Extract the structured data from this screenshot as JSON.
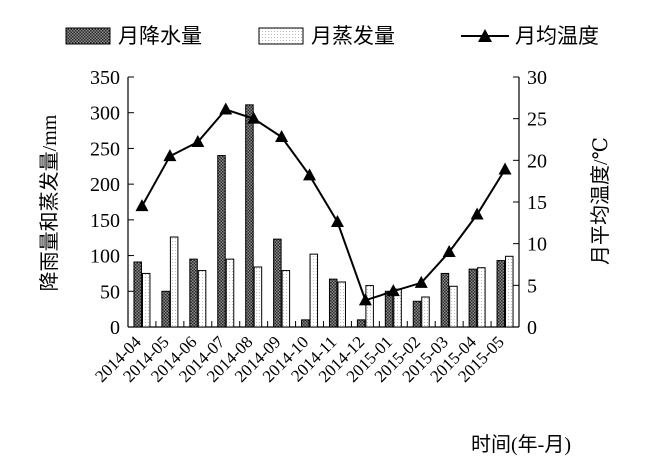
{
  "chart_data": {
    "type": "bar",
    "categories": [
      "2014-04",
      "2014-05",
      "2014-06",
      "2014-07",
      "2014-08",
      "2014-09",
      "2014-10",
      "2014-11",
      "2014-12",
      "2015-01",
      "2015-02",
      "2015-03",
      "2015-04",
      "2015-05"
    ],
    "series": [
      {
        "name": "月降水量",
        "type": "bar",
        "axis": "left",
        "pattern": "dark-hatch",
        "values": [
          91,
          50,
          95,
          240,
          311,
          123,
          10,
          67,
          10,
          50,
          36,
          75,
          81,
          93
        ]
      },
      {
        "name": "月蒸发量",
        "type": "bar",
        "axis": "left",
        "pattern": "light-dots",
        "values": [
          75,
          126,
          79,
          95,
          84,
          79,
          102,
          63,
          58,
          53,
          42,
          57,
          83,
          99
        ]
      },
      {
        "name": "月均温度",
        "type": "line",
        "axis": "right",
        "marker": "triangle",
        "values": [
          14.5,
          20.5,
          22.2,
          26.1,
          25.0,
          22.8,
          18.2,
          12.6,
          3.2,
          4.3,
          5.3,
          9.0,
          13.5,
          18.9
        ]
      }
    ],
    "ylabel": "降雨量和蒸发量/mm",
    "ylim": [
      0,
      350
    ],
    "yticks": [
      "0",
      "50",
      "100",
      "150",
      "200",
      "250",
      "300",
      "350"
    ],
    "y2label": "月平均温度/℃",
    "y2lim": [
      0,
      30
    ],
    "y2ticks": [
      "0",
      "5",
      "10",
      "15",
      "20",
      "25",
      "30"
    ],
    "xlabel": "时间(年-月)",
    "legend_position": "top",
    "grid": false,
    "colors": {
      "axis": "#000000",
      "bar_dark": "#555555",
      "bar_light": "#ffffff",
      "line": "#000000"
    }
  }
}
